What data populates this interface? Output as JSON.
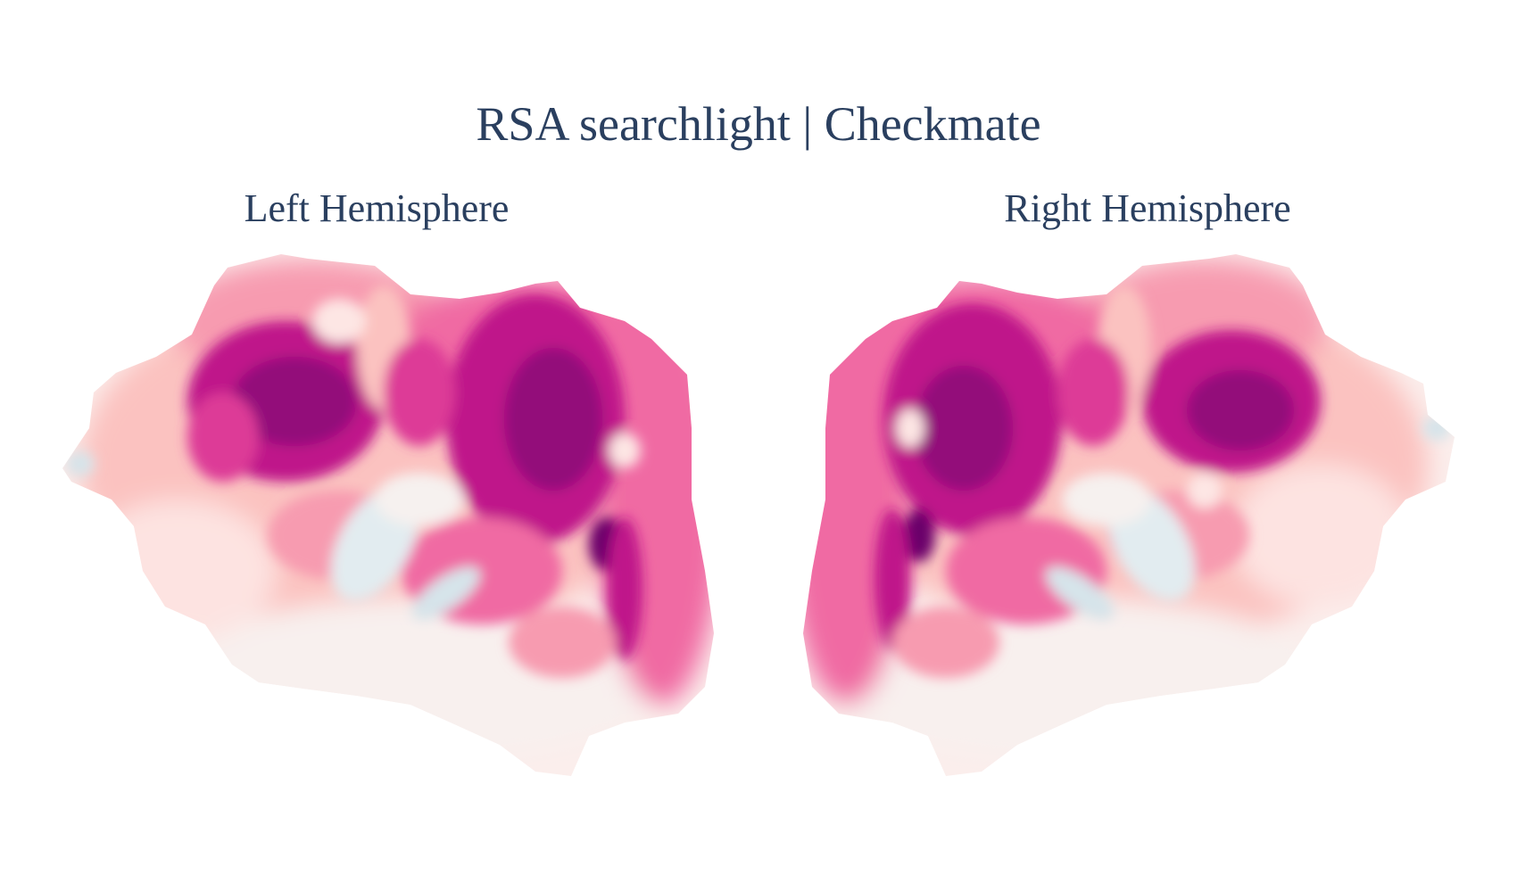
{
  "figure": {
    "title": "RSA searchlight | Checkmate",
    "panels": [
      {
        "id": "left",
        "title": "Left Hemisphere"
      },
      {
        "id": "right",
        "title": "Right Hemisphere"
      }
    ],
    "colorscale": [
      "#d6e4ea",
      "#f7f3f0",
      "#fde6e4",
      "#fbc2c0",
      "#f79bb0",
      "#f06aa3",
      "#dd3a97",
      "#bf138a",
      "#93077a",
      "#6a006a"
    ]
  }
}
